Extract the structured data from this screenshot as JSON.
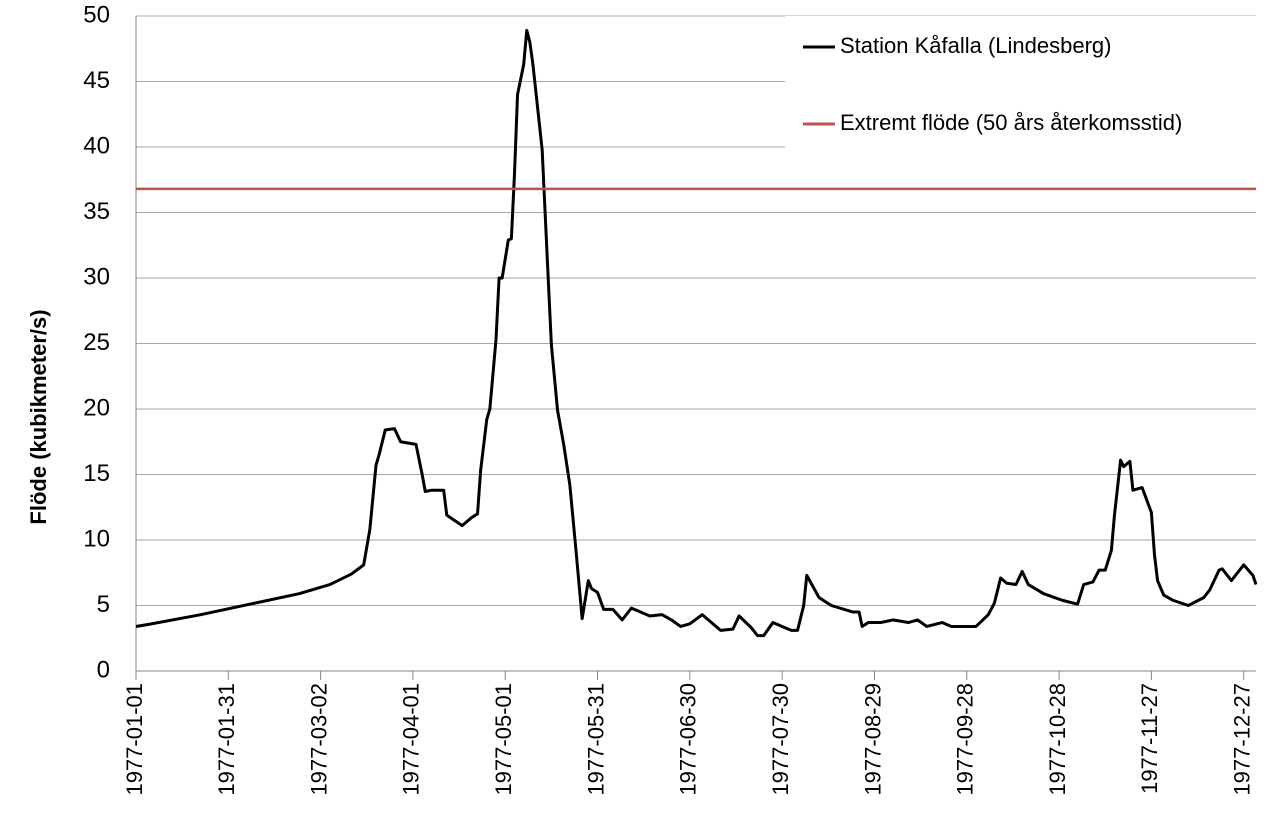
{
  "chart_data": {
    "type": "line",
    "y_label": "Flöde (kubikmeter/s)",
    "xlim": [
      "1977-01-01",
      "1977-12-31"
    ],
    "xticks": [
      "1977-01-01",
      "1977-01-31",
      "1977-03-02",
      "1977-04-01",
      "1977-05-01",
      "1977-05-31",
      "1977-06-30",
      "1977-07-30",
      "1977-08-29",
      "1977-09-28",
      "1977-10-28",
      "1977-11-27",
      "1977-12-27"
    ],
    "ylim": [
      0,
      50
    ],
    "yticks": [
      0,
      5,
      10,
      15,
      20,
      25,
      30,
      35,
      40,
      45,
      50
    ],
    "grid": true,
    "legend": "upper right",
    "series": [
      {
        "name": "Station Kåfalla (Lindesberg)",
        "color": "#000000",
        "x": [
          "1977-01-01",
          "1977-01-06",
          "1977-01-22",
          "1977-02-07",
          "1977-02-23",
          "1977-03-05",
          "1977-03-12",
          "1977-03-16",
          "1977-03-18",
          "1977-03-20",
          "1977-03-21",
          "1977-03-23",
          "1977-03-26",
          "1977-03-28",
          "1977-04-02",
          "1977-04-04",
          "1977-04-05",
          "1977-04-07",
          "1977-04-11",
          "1977-04-12",
          "1977-04-17",
          "1977-04-20",
          "1977-04-22",
          "1977-04-23",
          "1977-04-25",
          "1977-04-26",
          "1977-04-28",
          "1977-04-29",
          "1977-04-30",
          "1977-05-02",
          "1977-05-03",
          "1977-05-04",
          "1977-05-05",
          "1977-05-07",
          "1977-05-08",
          "1977-05-09",
          "1977-05-10",
          "1977-05-13",
          "1977-05-15",
          "1977-05-16",
          "1977-05-18",
          "1977-05-20",
          "1977-05-22",
          "1977-05-24",
          "1977-05-26",
          "1977-05-28",
          "1977-05-29",
          "1977-05-31",
          "1977-06-02",
          "1977-06-05",
          "1977-06-08",
          "1977-06-11",
          "1977-06-17",
          "1977-06-21",
          "1977-06-24",
          "1977-06-27",
          "1977-06-30",
          "1977-07-04",
          "1977-07-10",
          "1977-07-14",
          "1977-07-16",
          "1977-07-20",
          "1977-07-22",
          "1977-07-24",
          "1977-07-27",
          "1977-07-30",
          "1977-08-02",
          "1977-08-04",
          "1977-08-06",
          "1977-08-07",
          "1977-08-11",
          "1977-08-15",
          "1977-08-22",
          "1977-08-24",
          "1977-08-25",
          "1977-08-27",
          "1977-08-31",
          "1977-09-04",
          "1977-09-09",
          "1977-09-12",
          "1977-09-15",
          "1977-09-20",
          "1977-09-23",
          "1977-09-28",
          "1977-10-01",
          "1977-10-05",
          "1977-10-07",
          "1977-10-09",
          "1977-10-11",
          "1977-10-14",
          "1977-10-16",
          "1977-10-18",
          "1977-10-23",
          "1977-10-29",
          "1977-11-03",
          "1977-11-05",
          "1977-11-08",
          "1977-11-10",
          "1977-11-12",
          "1977-11-14",
          "1977-11-15",
          "1977-11-17",
          "1977-11-18",
          "1977-11-20",
          "1977-11-21",
          "1977-11-24",
          "1977-11-27",
          "1977-11-28",
          "1977-11-29",
          "1977-12-01",
          "1977-12-04",
          "1977-12-09",
          "1977-12-14",
          "1977-12-16",
          "1977-12-19",
          "1977-12-20",
          "1977-12-23",
          "1977-12-27",
          "1977-12-30",
          "1977-12-31"
        ],
        "values": [
          3.4,
          3.6,
          4.3,
          5.1,
          5.9,
          6.6,
          7.4,
          8.1,
          10.8,
          15.7,
          16.5,
          18.4,
          18.5,
          17.5,
          17.3,
          15.0,
          13.7,
          13.8,
          13.8,
          11.9,
          11.1,
          11.7,
          12.0,
          15.3,
          19.2,
          20.0,
          25.3,
          30.0,
          30.0,
          32.9,
          33.0,
          37.9,
          44.0,
          46.3,
          48.9,
          48.0,
          46.3,
          39.8,
          29.8,
          24.9,
          19.9,
          17.3,
          14.2,
          9.2,
          4.0,
          6.9,
          6.3,
          6.0,
          4.7,
          4.7,
          3.9,
          4.8,
          4.2,
          4.3,
          3.9,
          3.4,
          3.6,
          4.3,
          3.1,
          3.2,
          4.2,
          3.3,
          2.7,
          2.7,
          3.7,
          3.4,
          3.1,
          3.1,
          5.0,
          7.3,
          5.6,
          5.0,
          4.5,
          4.5,
          3.4,
          3.7,
          3.7,
          3.9,
          3.7,
          3.9,
          3.4,
          3.7,
          3.4,
          3.4,
          3.4,
          4.3,
          5.2,
          7.1,
          6.7,
          6.6,
          7.6,
          6.6,
          5.9,
          5.4,
          5.1,
          6.6,
          6.8,
          7.7,
          7.7,
          9.2,
          11.9,
          16.1,
          15.6,
          16.0,
          13.8,
          14.0,
          12.1,
          8.9,
          6.9,
          5.8,
          5.4,
          5.0,
          5.6,
          6.2,
          7.7,
          7.8,
          6.9,
          8.1,
          7.3,
          6.6
        ]
      },
      {
        "name": "Extremt flöde (50 års återkomsstid)",
        "color": "#c0504d",
        "x": [
          "1977-01-01",
          "1977-12-31"
        ],
        "values": [
          36.8,
          36.8
        ]
      }
    ]
  }
}
